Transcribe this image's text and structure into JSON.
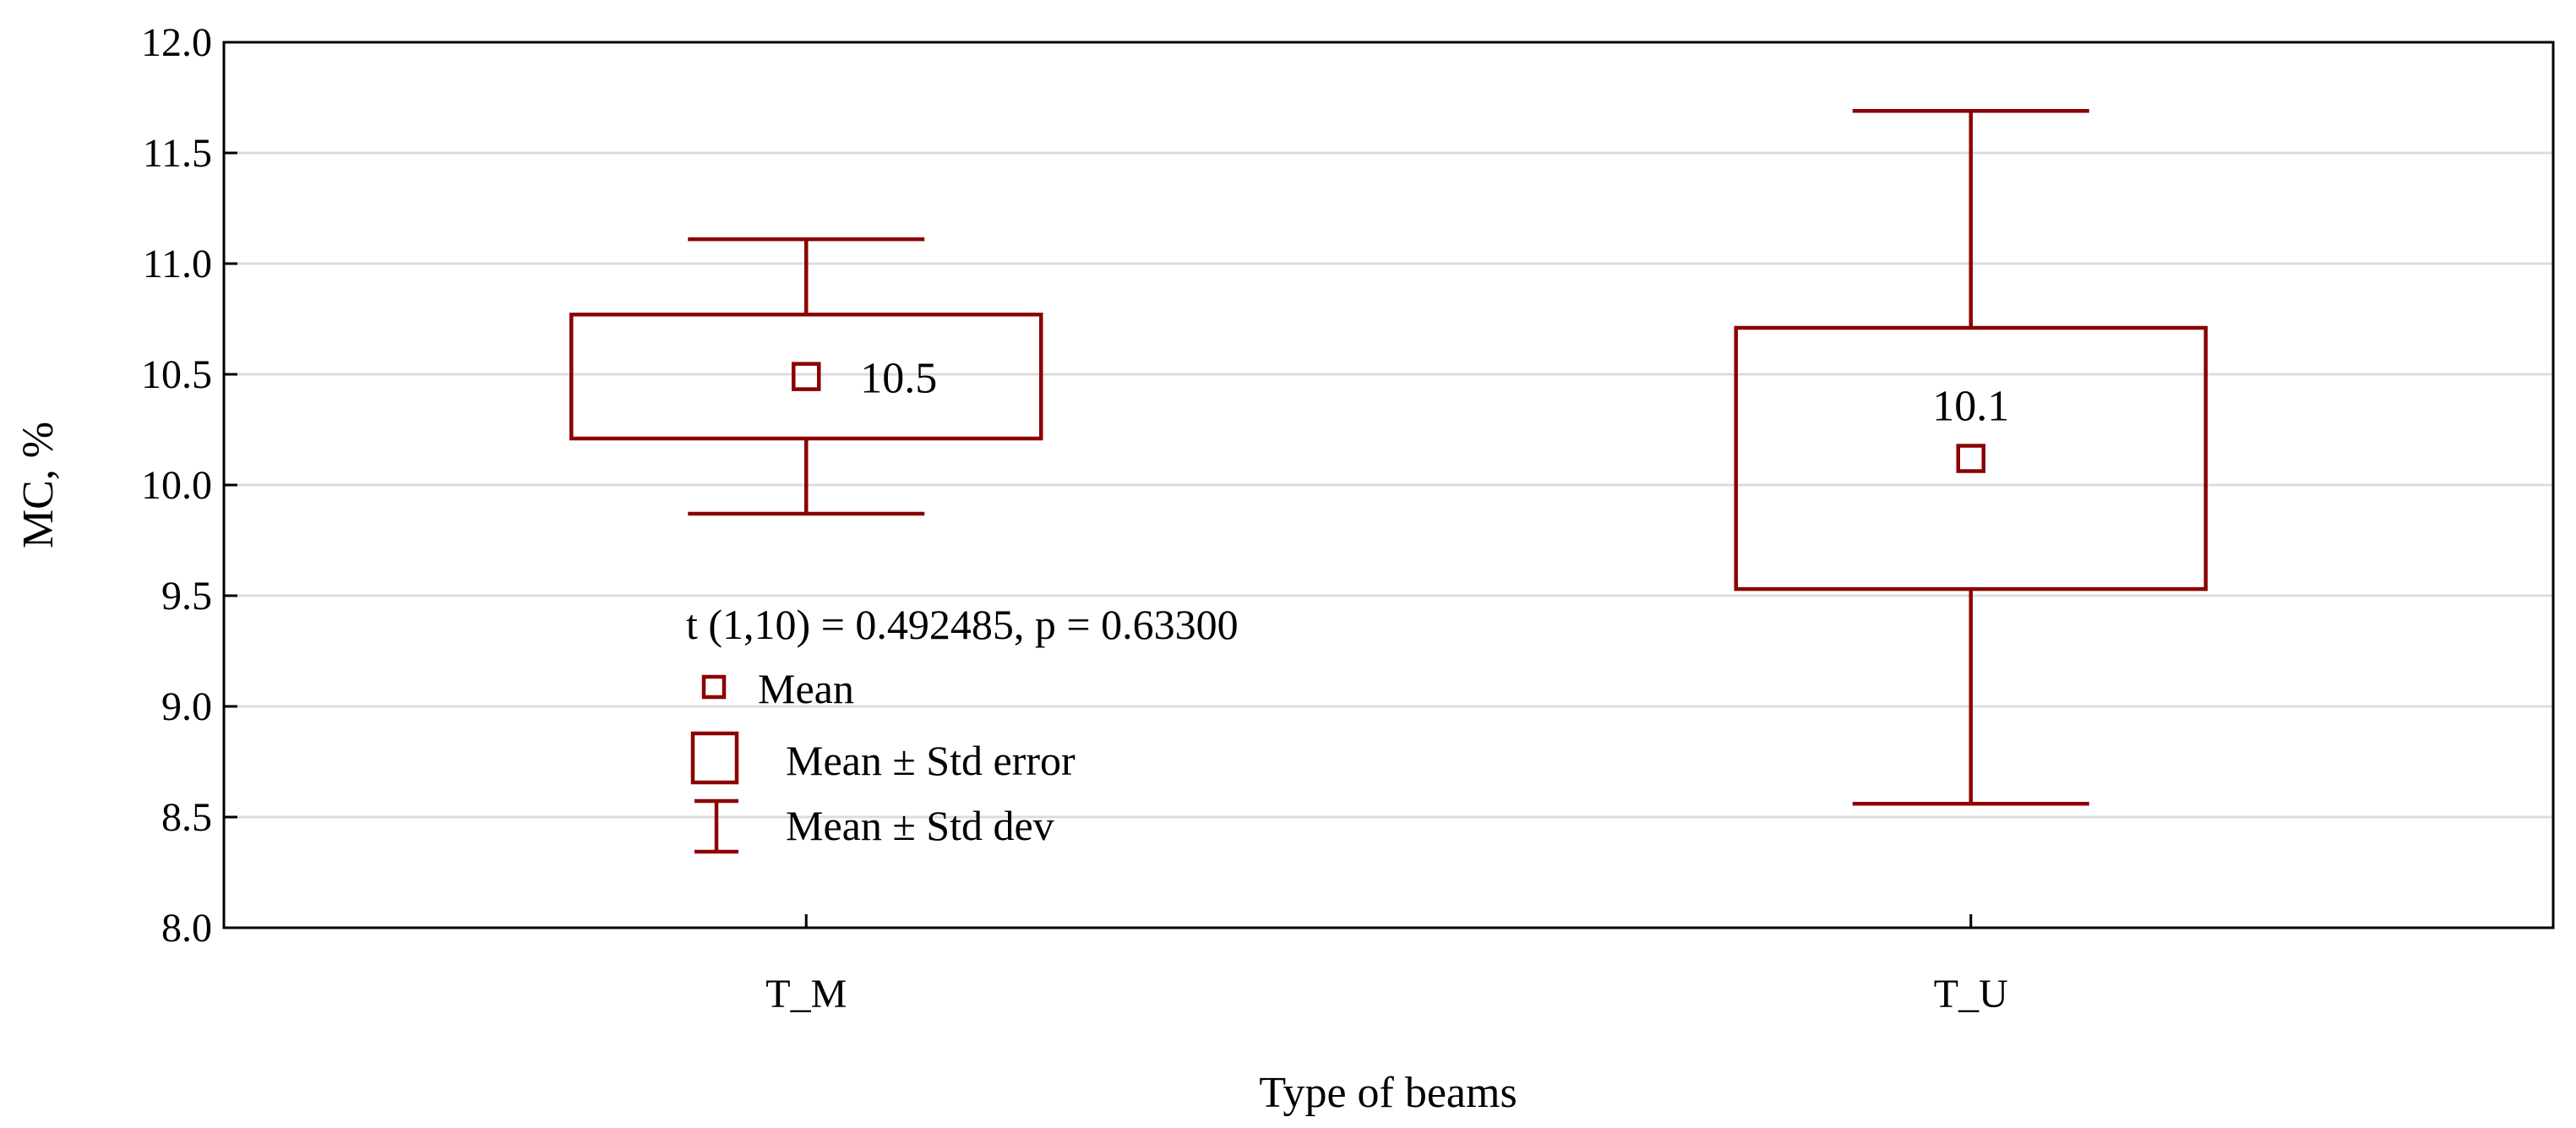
{
  "chart_data": {
    "type": "box",
    "xlabel": "Type of beams",
    "ylabel": "MC, %",
    "ylim": [
      8.0,
      12.0
    ],
    "yticks": [
      "8.0",
      "8.5",
      "9.0",
      "9.5",
      "10.0",
      "10.5",
      "11.0",
      "11.5",
      "12.0"
    ],
    "grid": true,
    "categories": [
      "T_M",
      "T_U"
    ],
    "series": [
      {
        "category": "T_M",
        "mean": 10.49,
        "mean_label": "10.5",
        "se_low": 10.21,
        "se_high": 10.77,
        "sd_low": 9.87,
        "sd_high": 11.11,
        "label_position": "right"
      },
      {
        "category": "T_U",
        "mean": 10.12,
        "mean_label": "10.1",
        "se_low": 9.53,
        "se_high": 10.71,
        "sd_low": 8.56,
        "sd_high": 11.69,
        "label_position": "above"
      }
    ],
    "annotation": "t (1,10) = 0.492485, p = 0.63300",
    "legend": {
      "placement": "center-left",
      "items": [
        "Mean",
        "Mean ± Std error",
        "Mean ± Std dev"
      ]
    },
    "colors": {
      "series": "#8b0000",
      "grid": "#dcdcdc",
      "axis": "#000000"
    }
  }
}
